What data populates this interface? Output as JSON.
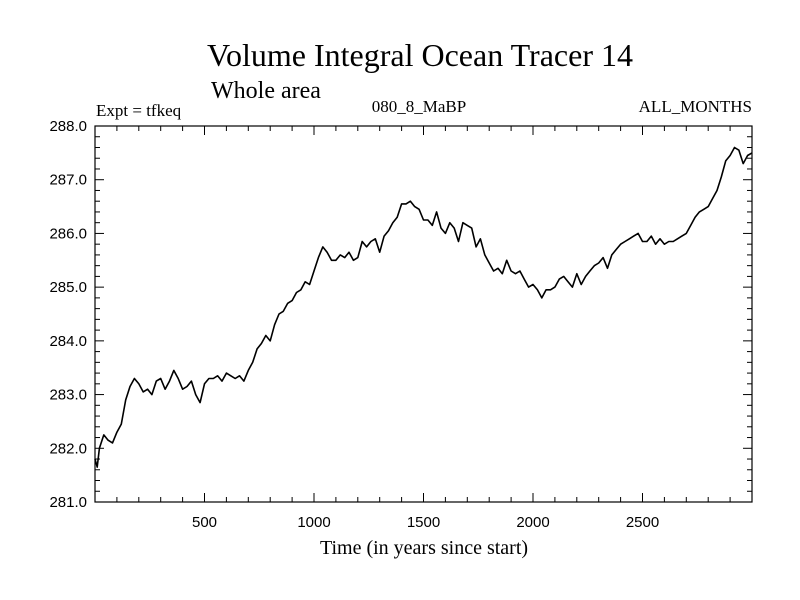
{
  "chart_data": {
    "type": "line",
    "title": "Volume Integral Ocean Tracer 14",
    "subtitle": "Whole area",
    "left_label": "Expt = tfkeq",
    "center_label": "080_8_MaBP",
    "right_label": "ALL_MONTHS",
    "xlabel": "Time (in years since start)",
    "ylabel": "",
    "xlim": [
      0,
      3000
    ],
    "ylim": [
      281.0,
      288.0
    ],
    "x_ticks": [
      500,
      1000,
      1500,
      2000,
      2500
    ],
    "x_tick_labels": [
      "500",
      "1000",
      "1500",
      "2000",
      "2500"
    ],
    "y_ticks": [
      281.0,
      282.0,
      283.0,
      284.0,
      285.0,
      286.0,
      287.0,
      288.0
    ],
    "y_tick_labels": [
      "281.0",
      "282.0",
      "283.0",
      "284.0",
      "285.0",
      "286.0",
      "287.0",
      "288.0"
    ],
    "grid": false,
    "line_color": "#000000",
    "series": [
      {
        "x": [
          0,
          10,
          20,
          40,
          60,
          80,
          100,
          120,
          140,
          160,
          180,
          200,
          220,
          240,
          260,
          280,
          300,
          320,
          340,
          360,
          380,
          400,
          420,
          440,
          460,
          480,
          500,
          520,
          540,
          560,
          580,
          600,
          620,
          640,
          660,
          680,
          700,
          720,
          740,
          760,
          780,
          800,
          820,
          840,
          860,
          880,
          900,
          920,
          940,
          960,
          980,
          1000,
          1020,
          1040,
          1060,
          1080,
          1100,
          1120,
          1140,
          1160,
          1180,
          1200,
          1220,
          1240,
          1260,
          1280,
          1300,
          1320,
          1340,
          1360,
          1380,
          1400,
          1420,
          1440,
          1460,
          1480,
          1500,
          1520,
          1540,
          1560,
          1580,
          1600,
          1620,
          1640,
          1660,
          1680,
          1700,
          1720,
          1740,
          1760,
          1780,
          1800,
          1820,
          1840,
          1860,
          1880,
          1900,
          1920,
          1940,
          1960,
          1980,
          2000,
          2020,
          2040,
          2060,
          2080,
          2100,
          2120,
          2140,
          2160,
          2180,
          2200,
          2220,
          2240,
          2260,
          2280,
          2300,
          2320,
          2340,
          2360,
          2380,
          2400,
          2420,
          2440,
          2460,
          2480,
          2500,
          2520,
          2540,
          2560,
          2580,
          2600,
          2620,
          2640,
          2660,
          2680,
          2700,
          2720,
          2740,
          2760,
          2780,
          2800,
          2820,
          2840,
          2860,
          2880,
          2900,
          2920,
          2940,
          2960,
          2980,
          3000
        ],
        "values": [
          281.8,
          281.65,
          282.0,
          282.25,
          282.15,
          282.1,
          282.3,
          282.45,
          282.9,
          283.15,
          283.3,
          283.2,
          283.05,
          283.1,
          283.0,
          283.25,
          283.3,
          283.1,
          283.25,
          283.45,
          283.3,
          283.1,
          283.15,
          283.25,
          283.0,
          282.85,
          283.2,
          283.3,
          283.3,
          283.35,
          283.25,
          283.4,
          283.35,
          283.3,
          283.35,
          283.25,
          283.45,
          283.6,
          283.85,
          283.95,
          284.1,
          284.0,
          284.3,
          284.5,
          284.55,
          284.7,
          284.75,
          284.9,
          284.95,
          285.1,
          285.05,
          285.3,
          285.55,
          285.75,
          285.65,
          285.5,
          285.5,
          285.6,
          285.55,
          285.65,
          285.5,
          285.55,
          285.85,
          285.75,
          285.85,
          285.9,
          285.65,
          285.95,
          286.05,
          286.2,
          286.3,
          286.55,
          286.55,
          286.6,
          286.5,
          286.45,
          286.25,
          286.25,
          286.15,
          286.4,
          286.1,
          286.0,
          286.2,
          286.1,
          285.85,
          286.2,
          286.15,
          286.1,
          285.75,
          285.9,
          285.6,
          285.45,
          285.3,
          285.35,
          285.25,
          285.5,
          285.3,
          285.25,
          285.3,
          285.15,
          285.0,
          285.05,
          284.95,
          284.8,
          284.95,
          284.95,
          285.0,
          285.15,
          285.2,
          285.1,
          285.0,
          285.25,
          285.05,
          285.2,
          285.3,
          285.4,
          285.45,
          285.55,
          285.35,
          285.6,
          285.7,
          285.8,
          285.85,
          285.9,
          285.95,
          286.0,
          285.85,
          285.85,
          285.95,
          285.8,
          285.9,
          285.8,
          285.85,
          285.85,
          285.9,
          285.95,
          286.0,
          286.15,
          286.3,
          286.4,
          286.45,
          286.5,
          286.65,
          286.8,
          287.05,
          287.35,
          287.45,
          287.6,
          287.55,
          287.3,
          287.45,
          287.5
        ]
      }
    ]
  }
}
